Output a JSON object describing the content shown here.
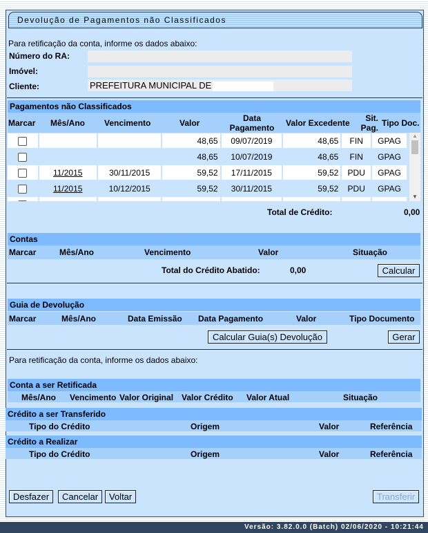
{
  "title": "Devolução de Pagamentos não Classificados",
  "intro": "Para retificação da conta, informe os dados abaixo:",
  "fields": {
    "ra_label": "Número do RA:",
    "ra_value": "",
    "imovel_label": "Imóvel:",
    "imovel_value": "",
    "cliente_label": "Cliente:",
    "cliente_value": "PREFEITURA MUNICIPAL DE"
  },
  "pagamentos": {
    "title": "Pagamentos não Classificados",
    "headers": [
      "Marcar",
      "Mês/Ano",
      "Vencimento",
      "Valor",
      "Data Pagamento",
      "Valor Excedente",
      "Sit. Pag.",
      "Tipo Doc."
    ],
    "rows": [
      {
        "mes": "",
        "venc": "",
        "valor": "48,65",
        "data": "09/07/2019",
        "exc": "48,65",
        "sit": "FIN",
        "tipo": "GPAG"
      },
      {
        "mes": "",
        "venc": "",
        "valor": "48,65",
        "data": "10/07/2019",
        "exc": "48,65",
        "sit": "FIN",
        "tipo": "GPAG"
      },
      {
        "mes": "11/2015",
        "venc": "30/11/2015",
        "valor": "59,52",
        "data": "17/11/2015",
        "exc": "59,52",
        "sit": "PDU",
        "tipo": "GPAG"
      },
      {
        "mes": "11/2015",
        "venc": "10/12/2015",
        "valor": "59,52",
        "data": "30/11/2015",
        "exc": "59,52",
        "sit": "PDU",
        "tipo": "GPAG"
      }
    ],
    "total_label": "Total de Crédito:",
    "total_value": "0,00"
  },
  "contas": {
    "title": "Contas",
    "headers": [
      "Marcar",
      "Mês/Ano",
      "Vencimento",
      "Valor",
      "Situação"
    ],
    "total_label": "Total do Crédito Abatido:",
    "total_value": "0,00",
    "calcular": "Calcular"
  },
  "guia": {
    "title": "Guia de Devolução",
    "headers": [
      "Marcar",
      "Mês/Ano",
      "Data Emissão",
      "Data Pagamento",
      "Valor",
      "Tipo Documento"
    ],
    "calcular": "Calcular Guia(s) Devolução",
    "gerar": "Gerar"
  },
  "intro2": "Para retificação da conta, informe os dados abaixo:",
  "conta_ret": {
    "title": "Conta a ser Retificada",
    "headers": [
      "Mês/Ano",
      "Vencimento",
      "Valor Original",
      "Valor Crédito",
      "Valor Atual",
      "Situação"
    ]
  },
  "credito_transf": {
    "title": "Crédito a ser Transferido",
    "headers": [
      "Tipo do Crédito",
      "Origem",
      "Valor",
      "Referência"
    ]
  },
  "credito_real": {
    "title": "Crédito a Realizar",
    "headers": [
      "Tipo do Crédito",
      "Origem",
      "Valor",
      "Referência"
    ]
  },
  "buttons": {
    "desfazer": "Desfazer",
    "cancelar": "Cancelar",
    "voltar": "Voltar",
    "transferir": "Transferir"
  },
  "footer": "Versão: 3.82.0.0 (Batch) 02/06/2020 - 10:21:44"
}
